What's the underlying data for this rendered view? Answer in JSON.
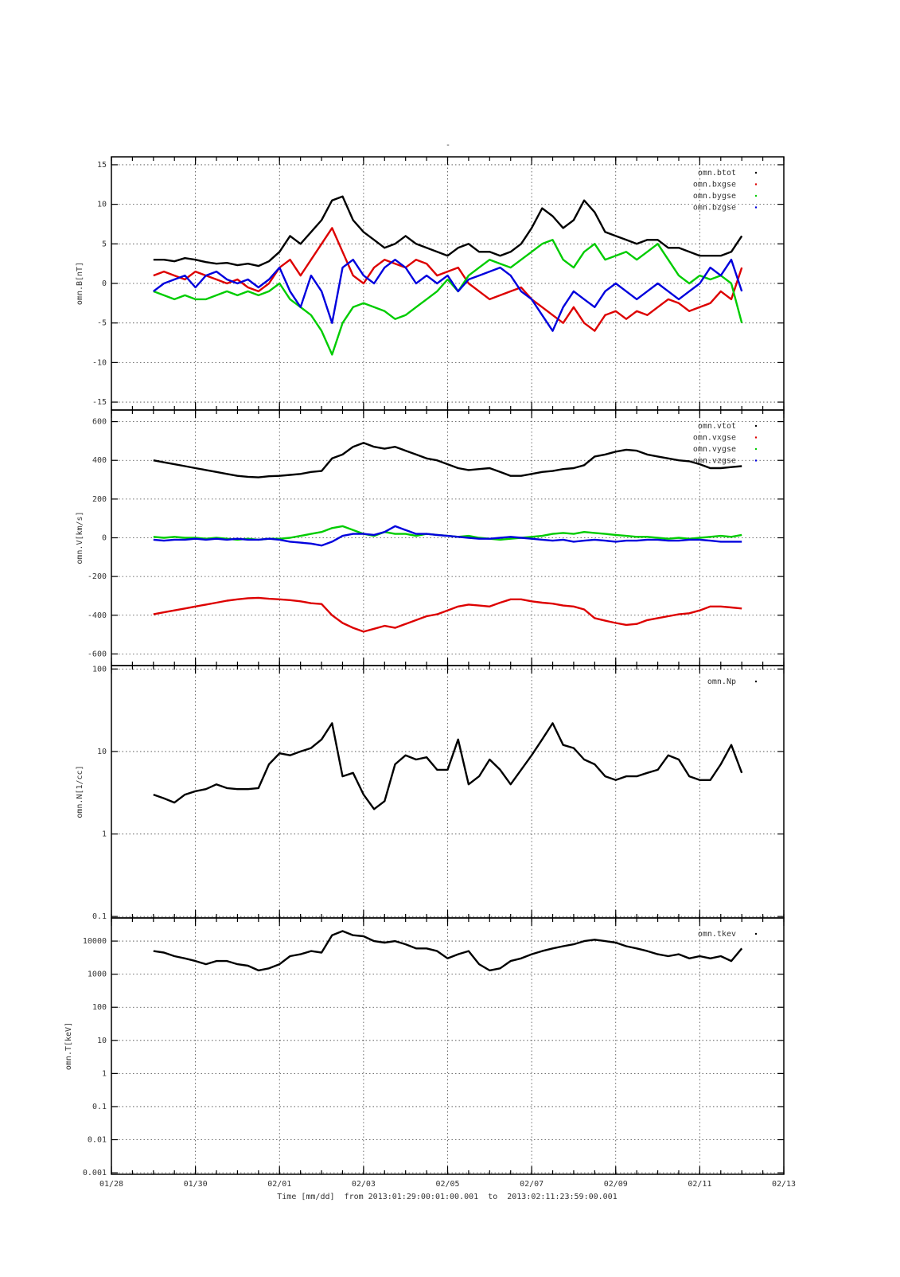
{
  "chart_data": [
    {
      "type": "line",
      "title": "-",
      "ylabel": "omn.B[nT]",
      "log": false,
      "grid": true,
      "legend": "upper right",
      "ylim": [
        -16,
        16
      ],
      "yticks": [
        -15,
        -10,
        -5,
        0,
        5,
        10,
        15
      ],
      "x": [
        1,
        1.25,
        1.5,
        1.75,
        2,
        2.25,
        2.5,
        2.75,
        3,
        3.25,
        3.5,
        3.75,
        4,
        4.25,
        4.5,
        4.75,
        5,
        5.25,
        5.5,
        5.75,
        6,
        6.25,
        6.5,
        6.75,
        7,
        7.25,
        7.5,
        7.75,
        8,
        8.25,
        8.5,
        8.75,
        9,
        9.25,
        9.5,
        9.75,
        10,
        10.25,
        10.5,
        10.75,
        11,
        11.25,
        11.5,
        11.75,
        12,
        12.25,
        12.5,
        12.75,
        13,
        13.25,
        13.5,
        13.75,
        14,
        14.25,
        14.5,
        14.75,
        15
      ],
      "series": [
        {
          "name": "omn.btot",
          "color": "#000000",
          "values": [
            3,
            3,
            2.8,
            3.2,
            3,
            2.7,
            2.5,
            2.6,
            2.3,
            2.5,
            2.2,
            2.8,
            4,
            6,
            5,
            6.5,
            8,
            10.5,
            11,
            8,
            6.5,
            5.5,
            4.5,
            5,
            6,
            5,
            4.5,
            4,
            3.5,
            4.5,
            5,
            4,
            4,
            3.5,
            4,
            5,
            7,
            9.5,
            8.5,
            7,
            8,
            10.5,
            9,
            6.5,
            6,
            5.5,
            5,
            5.5,
            5.5,
            4.5,
            4.5,
            4,
            3.5,
            3.5,
            3.5,
            4,
            6
          ]
        },
        {
          "name": "omn.bxgse",
          "color": "#dd0000",
          "values": [
            1,
            1.5,
            1,
            0.5,
            1.5,
            1,
            0.5,
            0,
            0.5,
            -0.5,
            -1,
            0,
            2,
            3,
            1,
            3,
            5,
            7,
            4,
            1,
            0,
            2,
            3,
            2.5,
            2,
            3,
            2.5,
            1,
            1.5,
            2,
            0,
            -1,
            -2,
            -1.5,
            -1,
            -0.5,
            -2,
            -3,
            -4,
            -5,
            -3,
            -5,
            -6,
            -4,
            -3.5,
            -4.5,
            -3.5,
            -4,
            -3,
            -2,
            -2.5,
            -3.5,
            -3,
            -2.5,
            -1,
            -2,
            2
          ]
        },
        {
          "name": "omn.bygse",
          "color": "#00cc00",
          "values": [
            -1,
            -1.5,
            -2,
            -1.5,
            -2,
            -2,
            -1.5,
            -1,
            -1.5,
            -1,
            -1.5,
            -1,
            0,
            -2,
            -3,
            -4,
            -6,
            -9,
            -5,
            -3,
            -2.5,
            -3,
            -3.5,
            -4.5,
            -4,
            -3,
            -2,
            -1,
            0.5,
            -1,
            1,
            2,
            3,
            2.5,
            2,
            3,
            4,
            5,
            5.5,
            3,
            2,
            4,
            5,
            3,
            3.5,
            4,
            3,
            4,
            5,
            3,
            1,
            0,
            1,
            0.5,
            1,
            0,
            -5
          ]
        },
        {
          "name": "omn.bzgse",
          "color": "#0000dd",
          "values": [
            -1,
            0,
            0.5,
            1,
            -0.5,
            1,
            1.5,
            0.5,
            0,
            0.5,
            -0.5,
            0.5,
            2,
            -1,
            -3,
            1,
            -1,
            -5,
            2,
            3,
            1,
            0,
            2,
            3,
            2,
            0,
            1,
            0,
            1,
            -1,
            0.5,
            1,
            1.5,
            2,
            1,
            -1,
            -2,
            -4,
            -6,
            -3,
            -1,
            -2,
            -3,
            -1,
            0,
            -1,
            -2,
            -1,
            0,
            -1,
            -2,
            -1,
            0,
            2,
            1,
            3,
            -1
          ]
        }
      ]
    },
    {
      "type": "line",
      "ylabel": "omn.V[km/s]",
      "log": false,
      "grid": true,
      "legend": "upper right",
      "ylim": [
        -660,
        660
      ],
      "yticks": [
        -600,
        -400,
        -200,
        0,
        200,
        400,
        600
      ],
      "x": [
        1,
        1.25,
        1.5,
        1.75,
        2,
        2.25,
        2.5,
        2.75,
        3,
        3.25,
        3.5,
        3.75,
        4,
        4.25,
        4.5,
        4.75,
        5,
        5.25,
        5.5,
        5.75,
        6,
        6.25,
        6.5,
        6.75,
        7,
        7.25,
        7.5,
        7.75,
        8,
        8.25,
        8.5,
        8.75,
        9,
        9.25,
        9.5,
        9.75,
        10,
        10.25,
        10.5,
        10.75,
        11,
        11.25,
        11.5,
        11.75,
        12,
        12.25,
        12.5,
        12.75,
        13,
        13.25,
        13.5,
        13.75,
        14,
        14.25,
        14.5,
        14.75,
        15
      ],
      "series": [
        {
          "name": "omn.vtot",
          "color": "#000000",
          "values": [
            400,
            390,
            380,
            370,
            360,
            350,
            340,
            330,
            320,
            315,
            312,
            318,
            320,
            325,
            330,
            340,
            345,
            410,
            430,
            470,
            490,
            470,
            460,
            470,
            450,
            430,
            410,
            400,
            380,
            360,
            350,
            355,
            360,
            340,
            320,
            320,
            330,
            340,
            345,
            355,
            360,
            375,
            420,
            430,
            445,
            455,
            450,
            430,
            420,
            410,
            400,
            395,
            380,
            360,
            360,
            365,
            370
          ]
        },
        {
          "name": "omn.vxgse",
          "color": "#dd0000",
          "values": [
            -395,
            -385,
            -375,
            -365,
            -355,
            -345,
            -335,
            -325,
            -318,
            -312,
            -310,
            -315,
            -318,
            -322,
            -328,
            -338,
            -342,
            -400,
            -440,
            -465,
            -485,
            -470,
            -455,
            -465,
            -445,
            -425,
            -405,
            -395,
            -375,
            -355,
            -345,
            -350,
            -355,
            -335,
            -318,
            -318,
            -328,
            -335,
            -340,
            -350,
            -355,
            -370,
            -415,
            -428,
            -440,
            -450,
            -445,
            -425,
            -415,
            -405,
            -395,
            -390,
            -375,
            -355,
            -355,
            -360,
            -365
          ]
        },
        {
          "name": "omn.vygse",
          "color": "#00cc00",
          "values": [
            5,
            0,
            5,
            0,
            0,
            -5,
            0,
            -5,
            -10,
            -5,
            -10,
            -5,
            -5,
            0,
            10,
            20,
            30,
            50,
            60,
            40,
            20,
            10,
            30,
            20,
            20,
            10,
            20,
            15,
            10,
            5,
            10,
            0,
            -5,
            -10,
            -5,
            0,
            5,
            10,
            20,
            25,
            20,
            30,
            25,
            20,
            15,
            10,
            5,
            5,
            0,
            -5,
            0,
            -5,
            0,
            5,
            10,
            5,
            15
          ]
        },
        {
          "name": "omn.vzgse",
          "color": "#0000dd",
          "values": [
            -10,
            -15,
            -10,
            -10,
            -5,
            -10,
            -5,
            -10,
            -5,
            -10,
            -10,
            -5,
            -10,
            -20,
            -25,
            -30,
            -40,
            -20,
            10,
            20,
            20,
            15,
            30,
            60,
            40,
            20,
            20,
            15,
            10,
            5,
            0,
            -5,
            -5,
            0,
            5,
            0,
            -5,
            -10,
            -15,
            -10,
            -20,
            -15,
            -10,
            -15,
            -20,
            -15,
            -15,
            -10,
            -10,
            -15,
            -15,
            -10,
            -10,
            -15,
            -20,
            -20,
            -20
          ]
        }
      ]
    },
    {
      "type": "line",
      "ylabel": "omn.N[1/cc]",
      "log": true,
      "grid": true,
      "legend": "upper right",
      "ylim": [
        0.096,
        110
      ],
      "yticks": [
        0.1,
        1,
        10,
        100
      ],
      "x": [
        1,
        1.25,
        1.5,
        1.75,
        2,
        2.25,
        2.5,
        2.75,
        3,
        3.25,
        3.5,
        3.75,
        4,
        4.25,
        4.5,
        4.75,
        5,
        5.25,
        5.5,
        5.75,
        6,
        6.25,
        6.5,
        6.75,
        7,
        7.25,
        7.5,
        7.75,
        8,
        8.25,
        8.5,
        8.75,
        9,
        9.25,
        9.5,
        9.75,
        10,
        10.25,
        10.5,
        10.75,
        11,
        11.25,
        11.5,
        11.75,
        12,
        12.25,
        12.5,
        12.75,
        13,
        13.25,
        13.5,
        13.75,
        14,
        14.25,
        14.5,
        14.75,
        15
      ],
      "series": [
        {
          "name": "omn.Np",
          "color": "#000000",
          "values": [
            3,
            2.7,
            2.4,
            3,
            3.3,
            3.5,
            4,
            3.6,
            3.5,
            3.5,
            3.6,
            7,
            9.5,
            9,
            10,
            11,
            14,
            22,
            5,
            5.5,
            3,
            2,
            2.5,
            7,
            9,
            8,
            8.5,
            6,
            6,
            14,
            4,
            5,
            8,
            6,
            4,
            6,
            9,
            14,
            22,
            12,
            11,
            8,
            7,
            5,
            4.5,
            5,
            5,
            5.5,
            6,
            9,
            8,
            5,
            4.5,
            4.5,
            7,
            12,
            5.5
          ]
        }
      ]
    },
    {
      "type": "line",
      "ylabel": "omn.T[keV]",
      "log": true,
      "grid": true,
      "legend": "upper right",
      "xlabel": "Time [mm/dd]  from 2013:01:29:00:01:00.001  to  2013:02:11:23:59:00.001",
      "xlim": [
        0,
        16
      ],
      "xticks": [
        {
          "value": 0,
          "label": "01/28"
        },
        {
          "value": 2,
          "label": "01/30"
        },
        {
          "value": 4,
          "label": "02/01"
        },
        {
          "value": 6,
          "label": "02/03"
        },
        {
          "value": 8,
          "label": "02/05"
        },
        {
          "value": 10,
          "label": "02/07"
        },
        {
          "value": 12,
          "label": "02/09"
        },
        {
          "value": 14,
          "label": "02/11"
        },
        {
          "value": 16,
          "label": "02/13"
        }
      ],
      "ylim": [
        0.0009,
        50000
      ],
      "yticks": [
        0.001,
        0.01,
        0.1,
        1,
        10,
        100,
        1000,
        10000
      ],
      "x": [
        1,
        1.25,
        1.5,
        1.75,
        2,
        2.25,
        2.5,
        2.75,
        3,
        3.25,
        3.5,
        3.75,
        4,
        4.25,
        4.5,
        4.75,
        5,
        5.25,
        5.5,
        5.75,
        6,
        6.25,
        6.5,
        6.75,
        7,
        7.25,
        7.5,
        7.75,
        8,
        8.25,
        8.5,
        8.75,
        9,
        9.25,
        9.5,
        9.75,
        10,
        10.25,
        10.5,
        10.75,
        11,
        11.25,
        11.5,
        11.75,
        12,
        12.25,
        12.5,
        12.75,
        13,
        13.25,
        13.5,
        13.75,
        14,
        14.25,
        14.5,
        14.75,
        15
      ],
      "series": [
        {
          "name": "omn.tkev",
          "color": "#000000",
          "values": [
            5000,
            4500,
            3500,
            3000,
            2500,
            2000,
            2500,
            2500,
            2000,
            1800,
            1300,
            1500,
            2000,
            3500,
            4000,
            5000,
            4500,
            15000,
            20000,
            15000,
            14000,
            10000,
            9000,
            10000,
            8000,
            6000,
            6000,
            5000,
            3000,
            4000,
            5000,
            2000,
            1300,
            1500,
            2500,
            3000,
            4000,
            5000,
            6000,
            7000,
            8000,
            10000,
            11000,
            10000,
            9000,
            7000,
            6000,
            5000,
            4000,
            3500,
            4000,
            3000,
            3500,
            3000,
            3500,
            2500,
            6000
          ]
        }
      ]
    }
  ]
}
